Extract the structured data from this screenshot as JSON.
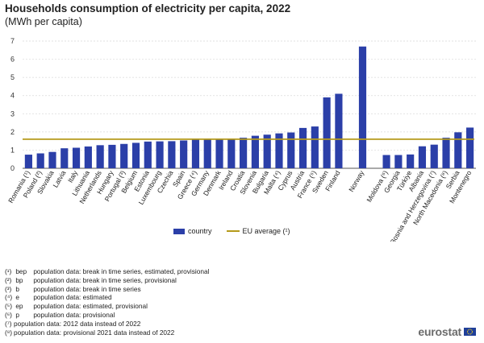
{
  "chart_data": {
    "type": "bar",
    "title": "Households consumption of electricity per capita, 2022",
    "subtitle": "(MWh per capita)",
    "ylim": [
      0,
      7
    ],
    "yticks": [
      0,
      1,
      2,
      3,
      4,
      5,
      6,
      7
    ],
    "grid": true,
    "legend_position": "bottom-center",
    "categories": [
      "Romania (¹)",
      "Poland (²)",
      "Slovakia",
      "Latvia",
      "Italy",
      "Lithuania",
      "Netherlands",
      "Hungary",
      "Portugal (³)",
      "Belgium",
      "Estonia",
      "Luxembourg",
      "Czechia",
      "Spain",
      "Greece (⁴)",
      "Germany",
      "Denmark",
      "Ireland",
      "Croatia",
      "Slovenia",
      "Bulgaria",
      "Malta (⁴)",
      "Cyprus",
      "Austria",
      "France (⁵)",
      "Sweden",
      "Finland",
      "",
      "Norway",
      "",
      "Moldova (⁶)",
      "Georgia",
      "Türkiye",
      "Albania",
      "Bosnia and Herzegovina (⁷)",
      "North Macedonia (⁸)",
      "Serbia",
      "Montenegro"
    ],
    "series": [
      {
        "name": "country",
        "color": "#2b3fa8",
        "values": [
          0.75,
          0.82,
          0.9,
          1.1,
          1.13,
          1.2,
          1.27,
          1.29,
          1.34,
          1.4,
          1.47,
          1.48,
          1.49,
          1.53,
          1.57,
          1.57,
          1.57,
          1.58,
          1.68,
          1.79,
          1.85,
          1.92,
          1.97,
          2.22,
          2.3,
          3.9,
          4.1,
          null,
          6.7,
          null,
          0.73,
          0.73,
          0.76,
          1.21,
          1.3,
          1.68,
          1.98,
          2.24
        ]
      }
    ],
    "reference_line": {
      "name": "EU average (¹)",
      "value": 1.6,
      "color": "#b59a1a"
    }
  },
  "legend": {
    "country": "country",
    "eu_average": "EU average (¹)"
  },
  "notes": [
    {
      "sup": "(¹)",
      "code": "bep",
      "text": "population data: break in time series, estimated, provisional"
    },
    {
      "sup": "(²)",
      "code": "bp",
      "text": "population data: break in time series, provisional"
    },
    {
      "sup": "(³)",
      "code": "b",
      "text": "population data: break in time series"
    },
    {
      "sup": "(⁴)",
      "code": "e",
      "text": "population data: estimated"
    },
    {
      "sup": "(⁵)",
      "code": "ep",
      "text": "population data: estimated, provisional"
    },
    {
      "sup": "(⁶)",
      "code": "p",
      "text": "population data: provisional"
    },
    {
      "sup": "(⁷)",
      "code": "",
      "text": "population data: 2012 data instead of 2022"
    },
    {
      "sup": "(⁸)",
      "code": "",
      "text": "population data: provisional 2021 data instead of 2022"
    }
  ],
  "logo": {
    "text": "eurostat",
    "flag_color": "#1f3f99"
  }
}
